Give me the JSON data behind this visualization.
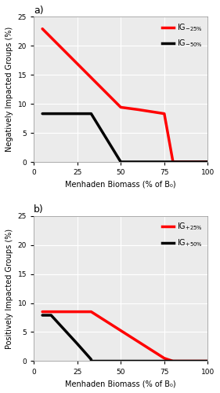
{
  "panel_a": {
    "title": "a)",
    "ylabel": "Negatively Impacted Groups (%)",
    "xlabel": "Menhaden Biomass (% of B₀)",
    "red_x": [
      5,
      50,
      60,
      75,
      80,
      100
    ],
    "red_y": [
      22.9,
      9.4,
      9.0,
      8.3,
      0.0,
      0.0
    ],
    "black_x": [
      5,
      33,
      33,
      50,
      50,
      100
    ],
    "black_y": [
      8.3,
      8.3,
      8.3,
      0.0,
      0.0,
      0.0
    ],
    "xlim": [
      0,
      100
    ],
    "ylim": [
      0,
      25
    ],
    "yticks": [
      0,
      5,
      10,
      15,
      20,
      25
    ],
    "leg_red": "IG$_{-25\\%}$",
    "leg_black": "IG$_{-50\\%}$"
  },
  "panel_b": {
    "title": "b)",
    "ylabel": "Positively Impacted Groups (%)",
    "xlabel": "Menhaden Biomass (% of B₀)",
    "red_x": [
      5,
      33,
      33,
      75,
      80,
      100
    ],
    "red_y": [
      8.5,
      8.5,
      8.5,
      0.5,
      0.0,
      0.0
    ],
    "black_x": [
      5,
      10,
      25,
      33,
      33,
      100
    ],
    "black_y": [
      7.9,
      7.9,
      3.0,
      0.3,
      0.0,
      0.0
    ],
    "xlim": [
      0,
      100
    ],
    "ylim": [
      0,
      25
    ],
    "yticks": [
      0,
      5,
      10,
      15,
      20,
      25
    ],
    "leg_red": "IG$_{+25\\%}$",
    "leg_black": "IG$_{+50\\%}$"
  },
  "red_color": "#FF0000",
  "black_color": "#000000",
  "line_width": 2.5,
  "bg_color": "#EBEBEB",
  "grid_color": "#FFFFFF",
  "legend_fontsize": 7,
  "axis_fontsize": 7,
  "tick_fontsize": 6.5,
  "title_fontsize": 9
}
